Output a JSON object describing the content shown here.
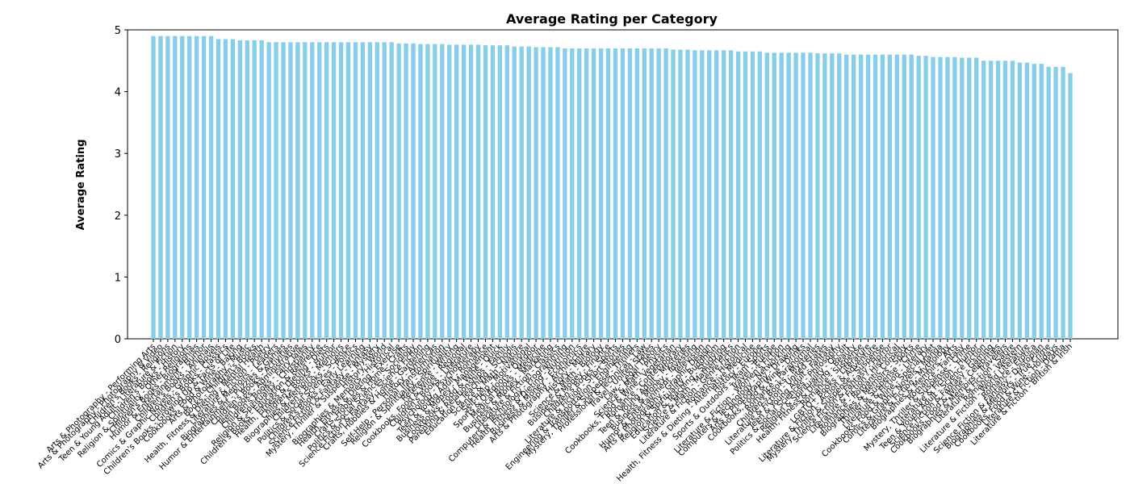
{
  "chart_data": {
    "type": "bar",
    "title": "Average Rating per Category",
    "ylabel": "Average Rating",
    "color": "#87ceeb",
    "ylim": [
      0,
      5
    ],
    "yticks": [
      0,
      1,
      2,
      3,
      4,
      5
    ],
    "grid": false,
    "categories": [
      "Arts & Photography - Performing Arts",
      "Arts & Photography - Photography & Video",
      "Children's Books - Religions",
      "Teen & Young Adult - Literature & Fiction",
      "Children's Books - History",
      "Religion & Spirituality - Other Religions",
      "Children's Books - Biographies",
      "Humor & Entertainment - Humor",
      "Children's Books - Animals",
      "Comics & Graphic Novels - Graphic Novels",
      "Children's Books - Classics",
      "Children's Books - Growing Up & Facts of Life",
      "Cookbooks, Food & Wine - Baking",
      "Arts & Photography - Music",
      "Books - Children's Books",
      "Health, Fitness & Dieting - Mental Health",
      "Literature & Fiction - Poetry",
      "Biographies & Memoirs - Leaders",
      "Humor & Entertainment - Puzzles & Games",
      "Children's Books - Activities",
      "Teen Books - Administrative",
      "Children's Books - Fairy Tales",
      "Religion & Spirituality - Christianity",
      "Children's Books - Education & Reference",
      "Health, Fitness & Dieting - Diets",
      "Children's Books - Humor",
      "Biographies & Memoirs - Memoirs",
      "Children's Books - Science",
      "Politics & Social Sciences - Politics",
      "Children's Books - Early Learning",
      "Science Fiction & Fantasy - Fantasy",
      "Mystery, Thriller & Suspense - Mystery",
      "History - World",
      "Biographies & Memoirs - Historical",
      "Health, Fitness & Dieting - Exercise",
      "Crafts, Hobbies & Home - Crafts",
      "Politics & Social Sciences - Sociology",
      "Science Fiction & Fantasy - Science Fiction",
      "Crafts, Hobbies & Home - Gardening",
      "History - Americas",
      "Self-Help - Personal Transformation",
      "Religion & Spirituality - Spirituality",
      "Reference - Writing",
      "Cookbooks, Food & Wine - Regional",
      "Children's Books - Literature",
      "Psychology - Psychotherapy",
      "Teen & Young Adult - Romance",
      "Business & Money - Management",
      "Cookbooks, Food & Wine - Quick",
      "Parenting & Relationships - Family",
      "Education & Teaching - Schools",
      "Science & Math - Nature",
      "Self-Help - Motivational",
      "Sports & Outdoors - Outdoor",
      "Medical Books - Medicine",
      "Business & Money - Marketing",
      "Literature & Fiction - Classics",
      "Computers & Technology - Programming",
      "Health, Fitness & Dieting - Nutrition",
      "Business & Money - Economics",
      "Arts & Photography - Architecture",
      "History - Military",
      "Science & Math - Biology",
      "Business & Money - Finance",
      "Children's Books - Sports",
      "Literature & Fiction - Short Stories",
      "Engineering & Transportation - Engineering",
      "Mystery, Thriller & Suspense - Thrillers",
      "Professional & Technical - Law",
      "Travel - United States",
      "Law - Legal Theory",
      "Science & Math - Physics",
      "Cookbooks, Food & Wine - Vegetarian",
      "Romance - Contemporary",
      "Teen & Young Adult - Mysteries",
      "Business & Money - Investing",
      "Humor & Entertainment - Television",
      "Arts & Photography - Graphic Design",
      "Religion & Spirituality - Buddhism",
      "Education & Teaching - Studying",
      "Science & Math - Mathematics",
      "Literature & Fiction - Genre Fiction",
      "Romance - Historical",
      "Health, Fitness & Dieting - Alternative Medicine",
      "History - Europe",
      "Sports & Outdoors - Team Sports",
      "Travel - Europe",
      "Literature & Fiction - Women's Fiction",
      "Computers & Technology - Networking",
      "Arts & Photography - Drawing",
      "Cookbooks, Food & Wine - Drinks",
      "Romance - Paranormal",
      "Children's Books - Mysteries",
      "Literature & Fiction - United States",
      "Teen & Young Adult - Fantasy",
      "Politics & Social Sciences - Philosophy",
      "Religion & Spirituality - Occult",
      "Health, Fitness & Dieting - Beauty",
      "Romance - Suspense",
      "LGBTQ+ Books - Literature",
      "Literature & Fiction - Action & Adventure",
      "Mystery, Thriller & Suspense - Suspense",
      "Science Fiction & Fantasy - Horror",
      "Literature & Fiction - Historical",
      "Romance - Romantic Comedy",
      "Biographies & Memoirs - Sports",
      "Thriller & Suspense - Crime",
      "Literature & Fiction - Literary",
      "Cookbooks, Food & Wine - Special Diet",
      "Comics & Graphic Novels - Manga",
      "Literature & Fiction - Mythology",
      "Biographies & Memoirs - Arts",
      "Romance - Fantasy",
      "Mystery, Thriller & Suspense - Crime",
      "Literature & Fiction - Humor",
      "Teen & Young Adult - Science Fiction",
      "Science Fiction & Fantasy - Gaming",
      "Cookbooks, Food & Wine - Celebrities",
      "Biographies & Memoirs - Travelers",
      "Literature & Fiction - Satire",
      "Romance - Western",
      "Literature & Fiction - World Literature",
      "Romance - Erotica",
      "Science Fiction & Fantasy - Dystopian",
      "Biographies & Memoirs - True Crime",
      "Cookbooks, Food & Wine - Holidays",
      "Literature & Fiction - Drama",
      "Literature & Fiction - British & Irish"
    ],
    "values": [
      4.9,
      4.9,
      4.9,
      4.9,
      4.9,
      4.9,
      4.9,
      4.9,
      4.9,
      4.85,
      4.85,
      4.85,
      4.83,
      4.83,
      4.83,
      4.83,
      4.8,
      4.8,
      4.8,
      4.8,
      4.8,
      4.8,
      4.8,
      4.8,
      4.8,
      4.8,
      4.8,
      4.8,
      4.8,
      4.8,
      4.8,
      4.8,
      4.8,
      4.8,
      4.78,
      4.78,
      4.78,
      4.77,
      4.77,
      4.77,
      4.77,
      4.76,
      4.76,
      4.76,
      4.76,
      4.76,
      4.75,
      4.75,
      4.75,
      4.75,
      4.73,
      4.73,
      4.73,
      4.72,
      4.72,
      4.72,
      4.72,
      4.7,
      4.7,
      4.7,
      4.7,
      4.7,
      4.7,
      4.7,
      4.7,
      4.7,
      4.7,
      4.7,
      4.7,
      4.7,
      4.7,
      4.7,
      4.68,
      4.68,
      4.68,
      4.67,
      4.67,
      4.67,
      4.67,
      4.67,
      4.67,
      4.65,
      4.65,
      4.65,
      4.65,
      4.63,
      4.63,
      4.63,
      4.63,
      4.63,
      4.63,
      4.63,
      4.62,
      4.62,
      4.62,
      4.62,
      4.6,
      4.6,
      4.6,
      4.6,
      4.6,
      4.6,
      4.6,
      4.6,
      4.6,
      4.6,
      4.58,
      4.58,
      4.56,
      4.56,
      4.56,
      4.56,
      4.55,
      4.55,
      4.55,
      4.5,
      4.5,
      4.5,
      4.5,
      4.5,
      4.47,
      4.47,
      4.45,
      4.45,
      4.4,
      4.4,
      4.4,
      4.3
    ]
  }
}
